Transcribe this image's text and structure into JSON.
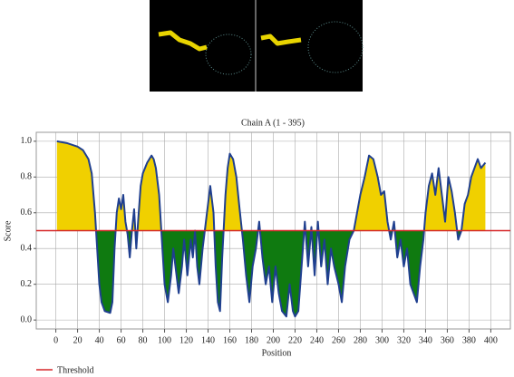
{
  "chart_data": {
    "type": "area-threshold",
    "title": "Chain A (1 - 395)",
    "xlabel": "Position",
    "ylabel": "Score",
    "threshold": 0.5,
    "threshold_name": "Threshold",
    "threshold_color": "#d62728",
    "line_color": "#1f3f8f",
    "above_color": "#f0d000",
    "below_color": "#0f7a10",
    "x": [
      1,
      10,
      20,
      25,
      30,
      33,
      36,
      38,
      40,
      42,
      45,
      50,
      52,
      54,
      56,
      58,
      60,
      62,
      64,
      66,
      68,
      70,
      72,
      74,
      76,
      78,
      80,
      84,
      88,
      90,
      92,
      95,
      98,
      100,
      103,
      106,
      108,
      110,
      113,
      116,
      118,
      121,
      124,
      126,
      128,
      130,
      132,
      135,
      138,
      142,
      145,
      147,
      149,
      151,
      153,
      156,
      158,
      160,
      163,
      166,
      169,
      172,
      175,
      178,
      181,
      184,
      187,
      190,
      193,
      196,
      199,
      202,
      205,
      208,
      212,
      215,
      218,
      220,
      223,
      226,
      229,
      232,
      235,
      238,
      241,
      244,
      247,
      250,
      253,
      256,
      260,
      263,
      266,
      270,
      274,
      277,
      280,
      284,
      288,
      292,
      296,
      299,
      302,
      305,
      308,
      311,
      314,
      317,
      320,
      323,
      326,
      329,
      332,
      335,
      338,
      340,
      343,
      346,
      349,
      352,
      355,
      358,
      361,
      364,
      367,
      370,
      373,
      376,
      379,
      382,
      385,
      388,
      391,
      395
    ],
    "values": [
      1.0,
      0.99,
      0.97,
      0.95,
      0.9,
      0.82,
      0.6,
      0.4,
      0.2,
      0.1,
      0.05,
      0.04,
      0.1,
      0.4,
      0.6,
      0.68,
      0.62,
      0.7,
      0.55,
      0.48,
      0.35,
      0.5,
      0.62,
      0.4,
      0.58,
      0.75,
      0.82,
      0.88,
      0.92,
      0.9,
      0.85,
      0.7,
      0.4,
      0.2,
      0.1,
      0.25,
      0.4,
      0.3,
      0.15,
      0.3,
      0.45,
      0.25,
      0.45,
      0.35,
      0.5,
      0.3,
      0.2,
      0.4,
      0.55,
      0.75,
      0.6,
      0.3,
      0.1,
      0.05,
      0.35,
      0.7,
      0.85,
      0.93,
      0.9,
      0.8,
      0.62,
      0.45,
      0.25,
      0.1,
      0.3,
      0.4,
      0.55,
      0.35,
      0.2,
      0.3,
      0.1,
      0.3,
      0.15,
      0.05,
      0.02,
      0.2,
      0.05,
      0.02,
      0.05,
      0.3,
      0.55,
      0.3,
      0.52,
      0.25,
      0.55,
      0.3,
      0.45,
      0.2,
      0.4,
      0.3,
      0.2,
      0.1,
      0.3,
      0.45,
      0.5,
      0.6,
      0.7,
      0.8,
      0.92,
      0.9,
      0.8,
      0.7,
      0.72,
      0.55,
      0.45,
      0.55,
      0.35,
      0.45,
      0.3,
      0.4,
      0.2,
      0.15,
      0.1,
      0.3,
      0.45,
      0.6,
      0.75,
      0.82,
      0.7,
      0.85,
      0.7,
      0.55,
      0.8,
      0.72,
      0.6,
      0.45,
      0.5,
      0.65,
      0.7,
      0.8,
      0.85,
      0.9,
      0.85,
      0.88
    ],
    "xlim": [
      -18,
      418
    ],
    "ylim": [
      -0.05,
      1.05
    ],
    "xticks": [
      0,
      20,
      40,
      60,
      80,
      100,
      120,
      140,
      160,
      180,
      200,
      220,
      240,
      260,
      280,
      300,
      320,
      340,
      360,
      380,
      400
    ],
    "yticks": [
      {
        "value": 0,
        "label": "0.0"
      },
      {
        "value": 0.2,
        "label": "0.2"
      },
      {
        "value": 0.4,
        "label": "0.4"
      },
      {
        "value": 0.6,
        "label": "0.6"
      },
      {
        "value": 0.8,
        "label": "0.8"
      },
      {
        "value": 1,
        "label": "1.0"
      }
    ],
    "grid": true
  }
}
